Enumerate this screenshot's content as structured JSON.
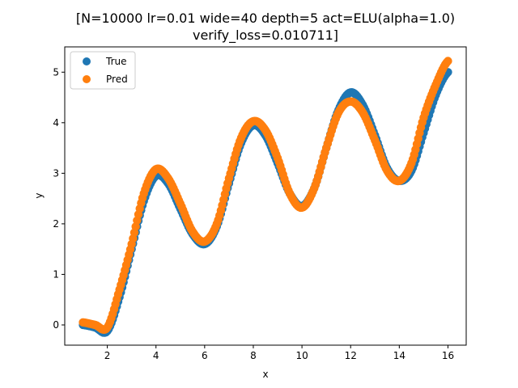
{
  "chart_data": {
    "type": "scatter",
    "title_lines": [
      "[N=10000 lr=0.01 wide=40 depth=5 act=ELU(alpha=1.0)",
      "verify_loss=0.010711]"
    ],
    "xlabel": "x",
    "ylabel": "y",
    "xlim": [
      0.25,
      16.75
    ],
    "ylim": [
      -0.4,
      5.5
    ],
    "xticks": [
      2,
      4,
      6,
      8,
      10,
      12,
      14,
      16
    ],
    "yticks": [
      0,
      1,
      2,
      3,
      4,
      5
    ],
    "grid": false,
    "legend_position": "upper-left",
    "series": [
      {
        "name": "True",
        "color": "#1f77b4",
        "x": [
          1.0,
          1.5,
          2.0,
          2.5,
          3.0,
          3.5,
          4.0,
          4.5,
          5.0,
          5.5,
          6.0,
          6.5,
          7.0,
          7.5,
          8.0,
          8.5,
          9.0,
          9.5,
          10.0,
          10.5,
          11.0,
          11.5,
          12.0,
          12.5,
          13.0,
          13.5,
          14.0,
          14.5,
          15.0,
          15.5,
          16.0
        ],
        "values": [
          0.0,
          -0.05,
          -0.12,
          0.55,
          1.5,
          2.45,
          2.95,
          2.8,
          2.3,
          1.8,
          1.6,
          1.95,
          2.8,
          3.6,
          3.95,
          3.75,
          3.2,
          2.6,
          2.35,
          2.7,
          3.5,
          4.25,
          4.6,
          4.35,
          3.75,
          3.1,
          2.85,
          3.05,
          3.8,
          4.55,
          5.0
        ]
      },
      {
        "name": "Pred",
        "color": "#ff7f0e",
        "x": [
          1.0,
          1.5,
          2.0,
          2.5,
          3.0,
          3.5,
          4.0,
          4.5,
          5.0,
          5.5,
          6.0,
          6.5,
          7.0,
          7.5,
          8.0,
          8.5,
          9.0,
          9.5,
          10.0,
          10.5,
          11.0,
          11.5,
          12.0,
          12.5,
          13.0,
          13.5,
          14.0,
          14.5,
          15.0,
          15.5,
          16.0
        ],
        "values": [
          0.05,
          0.0,
          -0.05,
          0.7,
          1.6,
          2.6,
          3.08,
          2.9,
          2.4,
          1.85,
          1.65,
          2.0,
          2.9,
          3.7,
          4.03,
          3.85,
          3.3,
          2.6,
          2.32,
          2.7,
          3.5,
          4.2,
          4.42,
          4.2,
          3.65,
          3.05,
          2.85,
          3.2,
          4.1,
          4.75,
          5.22
        ]
      }
    ]
  }
}
